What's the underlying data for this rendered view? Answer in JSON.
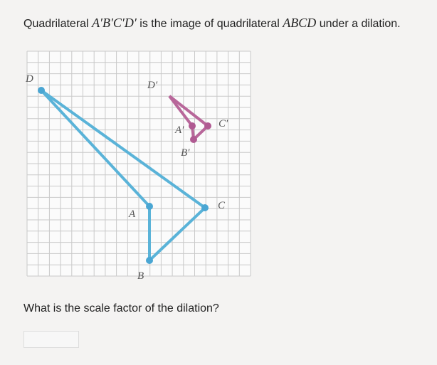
{
  "question": {
    "prefix": "Quadrilateral",
    "image_name": "A′B′C′D′",
    "middle": "is the image of quadrilateral",
    "original_name": "ABCD",
    "suffix": "under a dilation."
  },
  "graph": {
    "labels": {
      "D": "D",
      "D_prime": "D′",
      "C_prime": "C′",
      "A_prime": "A′",
      "B_prime": "B′",
      "C": "C",
      "A": "A",
      "B": "B"
    }
  },
  "prompt": "What is the scale factor of the dilation?"
}
